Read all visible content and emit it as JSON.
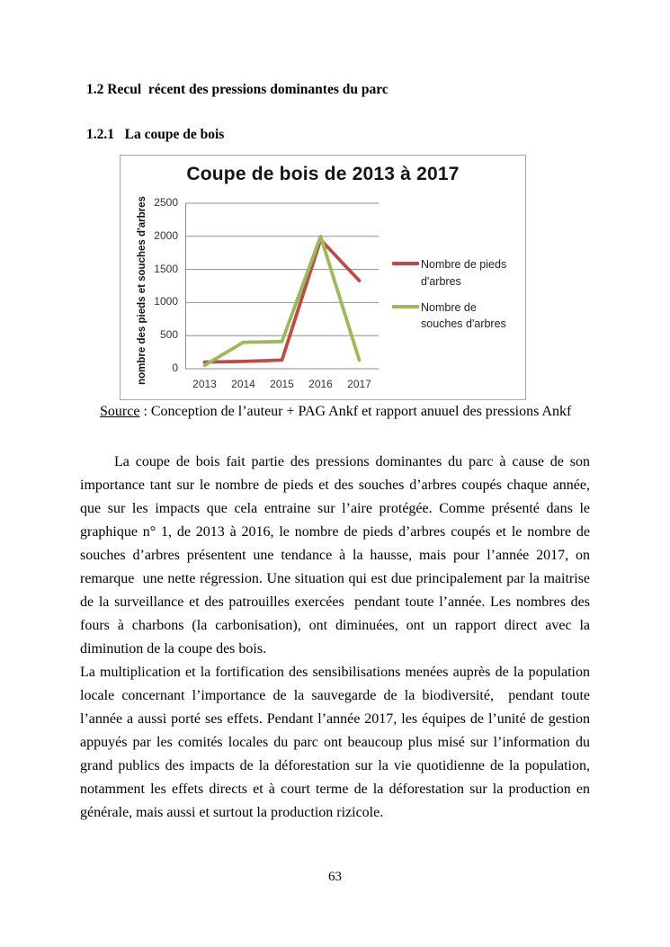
{
  "headings": {
    "section": "1.2 Recul  récent des pressions dominantes du parc",
    "subsection": "1.2.1   La coupe de bois"
  },
  "chart_data": {
    "type": "line",
    "title": "Coupe de bois de 2013 à 2017",
    "ylabel": "nombre des pieds et souches d'arbres",
    "categories": [
      "2013",
      "2014",
      "2015",
      "2016",
      "2017"
    ],
    "series": [
      {
        "name": "Nombre de pieds d'arbres",
        "color": "#be4b48",
        "values": [
          100,
          110,
          130,
          1950,
          1330
        ]
      },
      {
        "name": "Nombre de souches d'arbres",
        "color": "#9bbb59",
        "values": [
          50,
          400,
          410,
          2000,
          130
        ]
      }
    ],
    "ylim": [
      0,
      2500
    ],
    "yticks": [
      0,
      500,
      1000,
      1500,
      2000,
      2500
    ],
    "grid": true,
    "gridline_color": "#8f8f8f",
    "legend_position": "right"
  },
  "figure": {
    "source_label": "Source",
    "source_text": " : Conception de l’auteur + PAG Ankf et rapport anuuel des pressions Ankf"
  },
  "body": {
    "paragraph1": "La coupe de bois fait partie des pressions dominantes du parc à cause de son importance tant sur le nombre de pieds et des souches d’arbres coupés chaque année, que sur les impacts que cela entraine sur l’aire protégée. Comme présenté dans le graphique n° 1, de 2013 à 2016, le nombre de pieds d’arbres coupés et le nombre de souches d’arbres présentent une tendance à la hausse, mais pour l’année 2017, on remarque  une nette régression. Une situation qui est due principalement par la maitrise de la surveillance et des patrouilles exercées  pendant toute l’année. Les nombres des fours à charbons (la carbonisation), ont diminuées, ont un rapport direct avec la diminution de la coupe des bois.",
    "paragraph2": "La multiplication et la fortification des sensibilisations menées auprès de la population locale concernant l’importance de la sauvegarde de la biodiversité,  pendant toute l’année a aussi porté ses effets. Pendant l’année 2017, les équipes de l’unité de gestion appuyés par les comités locales du parc ont beaucoup plus misé sur l’information du grand publics des impacts de la déforestation sur la vie quotidienne de la population, notamment les effets directs et à court terme de la déforestation sur la production en générale, mais aussi et surtout la production rizicole."
  },
  "page": {
    "number": "63"
  }
}
